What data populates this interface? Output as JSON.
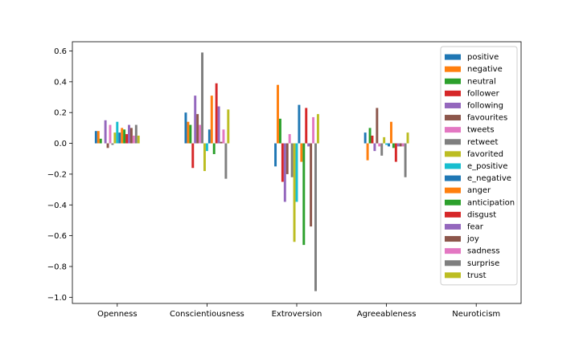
{
  "chart_data": {
    "type": "bar",
    "title": "",
    "xlabel": "",
    "ylabel": "",
    "ylim": [
      -1.04,
      0.66
    ],
    "yticks": [
      -1.0,
      -0.8,
      -0.6,
      -0.4,
      -0.2,
      0.0,
      0.2,
      0.4,
      0.6
    ],
    "ytick_labels": [
      "−1.0",
      "−0.8",
      "−0.6",
      "−0.4",
      "−0.2",
      "0.0",
      "0.2",
      "0.4",
      "0.6"
    ],
    "grid": false,
    "legend_position": "upper-right",
    "categories": [
      "Openness",
      "Conscientiousness",
      "Extroversion",
      "Agreeableness",
      "Neuroticism"
    ],
    "series": [
      {
        "name": "positive",
        "color": "#1f77b4",
        "values": [
          0.08,
          0.2,
          -0.15,
          0.07,
          0.0
        ]
      },
      {
        "name": "negative",
        "color": "#ff7f0e",
        "values": [
          0.08,
          0.14,
          0.38,
          -0.11,
          0.0
        ]
      },
      {
        "name": "neutral",
        "color": "#2ca02c",
        "values": [
          0.03,
          0.12,
          0.16,
          0.1,
          0.0
        ]
      },
      {
        "name": "follower",
        "color": "#d62728",
        "values": [
          0.0,
          -0.16,
          -0.25,
          0.05,
          0.0
        ]
      },
      {
        "name": "following",
        "color": "#9467bd",
        "values": [
          0.15,
          0.31,
          -0.38,
          -0.05,
          0.0
        ]
      },
      {
        "name": "favourites",
        "color": "#8c564b",
        "values": [
          -0.03,
          0.19,
          -0.2,
          0.23,
          0.0
        ]
      },
      {
        "name": "tweets",
        "color": "#e377c2",
        "values": [
          0.12,
          0.12,
          0.06,
          -0.02,
          0.0
        ]
      },
      {
        "name": "retweet",
        "color": "#7f7f7f",
        "values": [
          -0.01,
          0.59,
          -0.22,
          -0.08,
          0.0
        ]
      },
      {
        "name": "favorited",
        "color": "#bcbd22",
        "values": [
          0.07,
          -0.18,
          -0.64,
          0.04,
          0.0
        ]
      },
      {
        "name": "e_positive",
        "color": "#17becf",
        "values": [
          0.14,
          -0.05,
          -0.38,
          -0.01,
          0.0
        ]
      },
      {
        "name": "e_negative",
        "color": "#1f77b4",
        "values": [
          0.07,
          0.09,
          0.25,
          -0.02,
          0.0
        ]
      },
      {
        "name": "anger",
        "color": "#ff7f0e",
        "values": [
          0.1,
          0.31,
          -0.12,
          0.14,
          0.0
        ]
      },
      {
        "name": "anticipation",
        "color": "#2ca02c",
        "values": [
          0.09,
          -0.07,
          -0.66,
          -0.03,
          0.0
        ]
      },
      {
        "name": "disgust",
        "color": "#d62728",
        "values": [
          0.06,
          0.39,
          0.23,
          -0.12,
          0.0
        ]
      },
      {
        "name": "fear",
        "color": "#9467bd",
        "values": [
          0.12,
          0.24,
          -0.02,
          -0.02,
          0.0
        ]
      },
      {
        "name": "joy",
        "color": "#8c564b",
        "values": [
          0.1,
          0.01,
          -0.54,
          -0.02,
          0.0
        ]
      },
      {
        "name": "sadness",
        "color": "#e377c2",
        "values": [
          0.05,
          0.09,
          0.17,
          -0.02,
          0.0
        ]
      },
      {
        "name": "surprise",
        "color": "#7f7f7f",
        "values": [
          0.12,
          -0.23,
          -0.96,
          -0.22,
          0.0
        ]
      },
      {
        "name": "trust",
        "color": "#bcbd22",
        "values": [
          0.05,
          0.22,
          0.19,
          0.07,
          0.0
        ]
      }
    ]
  }
}
